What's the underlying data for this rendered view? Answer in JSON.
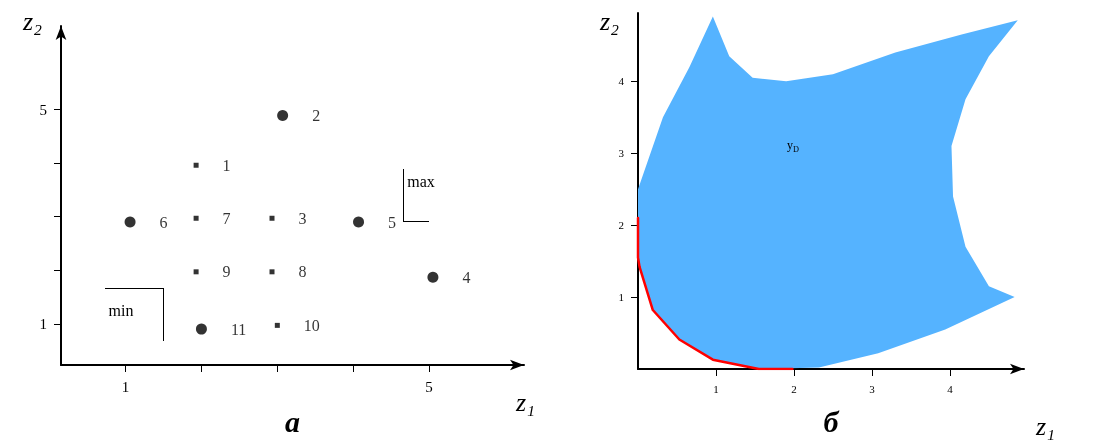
{
  "chart_data": [
    {
      "type": "scatter",
      "title": "а",
      "xlabel": "z₁",
      "ylabel": "z₂",
      "xlim": [
        0.15,
        6.25
      ],
      "ylim": [
        0.23,
        6.56
      ],
      "xticks": [
        1,
        {
          "value": 2,
          "label": null
        },
        {
          "value": 3,
          "label": null
        },
        {
          "value": 4,
          "label": null
        },
        5
      ],
      "yticks": [
        1,
        {
          "value": 2,
          "label": null
        },
        {
          "value": 3,
          "label": null
        },
        {
          "value": 4,
          "label": null
        },
        5
      ],
      "grid": false,
      "series": [
        {
          "name": "1",
          "marker": "square",
          "color": "#000000",
          "x": [
            1.93
          ],
          "values": [
            3.96
          ]
        },
        {
          "name": "2",
          "marker": "circle",
          "color": "#000000",
          "x": [
            3.07
          ],
          "values": [
            4.89
          ]
        },
        {
          "name": "3",
          "marker": "square",
          "color": "#000000",
          "x": [
            2.93
          ],
          "values": [
            2.97
          ]
        },
        {
          "name": "4",
          "marker": "circle",
          "color": "#000000",
          "x": [
            5.05
          ],
          "values": [
            1.87
          ]
        },
        {
          "name": "5",
          "marker": "circle",
          "color": "#000000",
          "x": [
            4.07
          ],
          "values": [
            2.9
          ]
        },
        {
          "name": "6",
          "marker": "circle",
          "color": "#000000",
          "x": [
            1.06
          ],
          "values": [
            2.9
          ]
        },
        {
          "name": "7",
          "marker": "square",
          "color": "#000000",
          "x": [
            1.93
          ],
          "values": [
            2.97
          ]
        },
        {
          "name": "8",
          "marker": "square",
          "color": "#000000",
          "x": [
            2.93
          ],
          "values": [
            1.97
          ]
        },
        {
          "name": "9",
          "marker": "square",
          "color": "#000000",
          "x": [
            1.93
          ],
          "values": [
            1.97
          ]
        },
        {
          "name": "10",
          "marker": "square",
          "color": "#000000",
          "x": [
            3.0
          ],
          "values": [
            0.97
          ]
        },
        {
          "name": "11",
          "marker": "circle",
          "color": "#000000",
          "x": [
            2.0
          ],
          "values": [
            0.9
          ]
        }
      ],
      "annotations": [
        "min",
        "max"
      ]
    },
    {
      "type": "area",
      "title": "б",
      "xlabel": "z₁",
      "ylabel": "z₂",
      "xlim": [
        0,
        4.95
      ],
      "ylim": [
        0,
        4.95
      ],
      "xticks": [
        1,
        2,
        3,
        4
      ],
      "yticks": [
        1,
        2,
        3,
        4
      ],
      "grid": false,
      "series": [
        {
          "color": "#55b3ff",
          "x": [
            0,
            0.32,
            0.66,
            0.96,
            1.17,
            1.47,
            1.9,
            2.5,
            3.3,
            4.15,
            4.87,
            4.5,
            4.2,
            4.02,
            4.04,
            4.2,
            4.5,
            4.83,
            3.94,
            3.08,
            2.32,
            1.55,
            0.96,
            0.53,
            0.19,
            0.02,
            0
          ],
          "values": [
            2.5,
            3.5,
            4.2,
            4.9,
            4.35,
            4.05,
            4.0,
            4.1,
            4.4,
            4.65,
            4.85,
            4.35,
            3.75,
            3.1,
            2.4,
            1.7,
            1.15,
            1.0,
            0.55,
            0.22,
            0.02,
            0,
            0.13,
            0.41,
            0.82,
            1.42,
            1.55
          ]
        },
        {
          "type": "line",
          "color": "#ff0000",
          "x": [
            0,
            0,
            0.02,
            0.19,
            0.53,
            0.96,
            1.55,
            1.98
          ],
          "values": [
            2.1,
            1.55,
            1.42,
            0.82,
            0.41,
            0.13,
            0,
            0
          ]
        }
      ],
      "annotations": [
        "y$_{D}$"
      ]
    }
  ]
}
